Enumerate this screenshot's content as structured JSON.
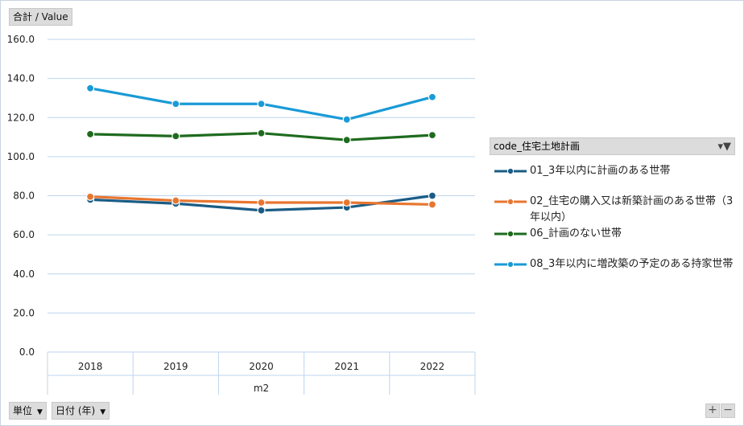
{
  "value_field": "合計 / Value",
  "filters": {
    "unit": "単位",
    "date": "日付 (年)"
  },
  "legend_title": "code_住宅土地計画",
  "zoom": {
    "plus": "+",
    "minus": "−"
  },
  "colors": {
    "s1": "#1a5c85",
    "s2": "#e87630",
    "s3": "#1e6b1e",
    "s4": "#1a9ad6",
    "grid": "#bcd6ee"
  },
  "chart_data": {
    "type": "line",
    "categories": [
      "2018",
      "2019",
      "2020",
      "2021",
      "2022"
    ],
    "xlabel": "m2",
    "ylim": [
      0,
      160
    ],
    "yticks": [
      "0.0",
      "20.0",
      "40.0",
      "60.0",
      "80.0",
      "100.0",
      "120.0",
      "140.0",
      "160.0"
    ],
    "grid": true,
    "legend": "right",
    "series": [
      {
        "name": "01_3年以内に計画のある世帯",
        "values": [
          78,
          76,
          72.5,
          74,
          80
        ]
      },
      {
        "name": "02_住宅の購入又は新築計画のある世帯（3年以内）",
        "values": [
          79.5,
          77.5,
          76.5,
          76.5,
          75.5
        ]
      },
      {
        "name": "06_計画のない世帯",
        "values": [
          111.5,
          110.5,
          112,
          108.5,
          111
        ]
      },
      {
        "name": "08_3年以内に増改築の予定のある持家世帯",
        "values": [
          135,
          127,
          127,
          119,
          130.5
        ]
      }
    ]
  }
}
